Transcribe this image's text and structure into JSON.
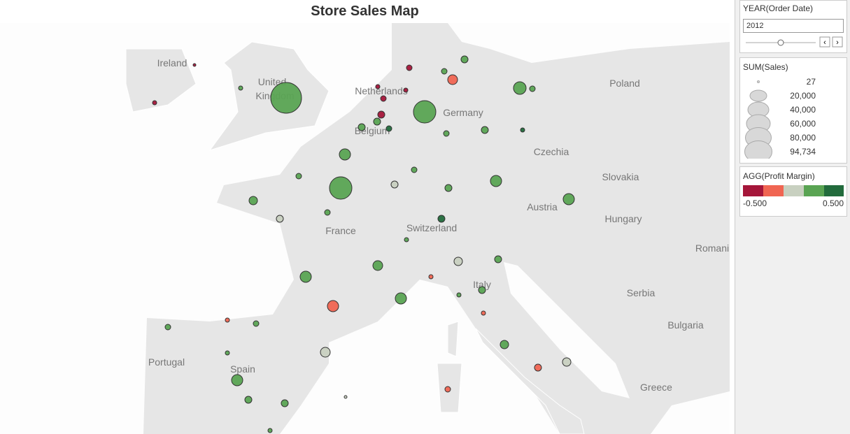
{
  "title": "Store Sales Map",
  "map_labels": [
    "Ireland",
    "United",
    "Kingdom",
    "Netherlands",
    "Germany",
    "Poland",
    "Belgium",
    "Czechia",
    "Slovakia",
    "Austria",
    "Hungary",
    "France",
    "Switzerland",
    "Romani",
    "Italy",
    "Serbia",
    "Bulgaria",
    "Portugal",
    "Spain",
    "Greece"
  ],
  "filter": {
    "title": "YEAR(Order Date)",
    "value": "2012"
  },
  "size_legend": {
    "title": "SUM(Sales)",
    "labels": [
      "27",
      "20,000",
      "40,000",
      "60,000",
      "80,000",
      "94,734"
    ]
  },
  "color_legend": {
    "title": "AGG(Profit Margin)",
    "min_label": "-0.500",
    "max_label": "0.500"
  }
}
